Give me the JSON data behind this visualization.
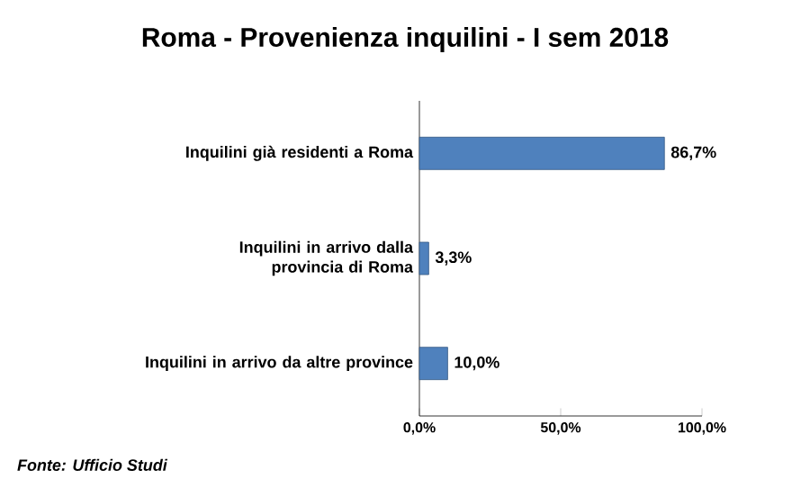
{
  "chart_data": {
    "type": "bar",
    "orientation": "horizontal",
    "title": "Roma - Provenienza inquilini - I sem 2018",
    "categories": [
      "Inquilini già residenti a Roma",
      "Inquilini in arrivo dalla provincia di Roma",
      "Inquilini in arrivo da altre province"
    ],
    "values": [
      86.7,
      3.3,
      10.0
    ],
    "value_labels": [
      "86,7%",
      "3,3%",
      "10,0%"
    ],
    "color": "#4f81bd",
    "xlim": [
      0,
      100
    ],
    "xticks": [
      {
        "value": 0,
        "label": "0,0%"
      },
      {
        "value": 50,
        "label": "50,0%"
      },
      {
        "value": 100,
        "label": "100,0%"
      }
    ],
    "annotations": [
      "Fonte: Ufficio Studi"
    ]
  }
}
